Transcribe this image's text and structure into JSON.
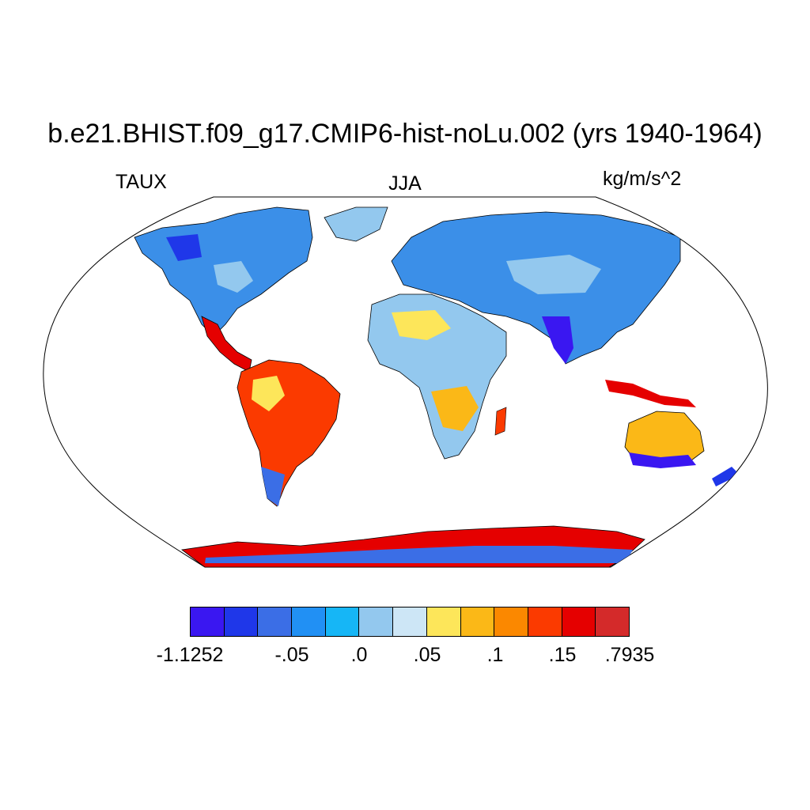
{
  "header": {
    "title": "b.e21.BHIST.f09_g17.CMIP6-hist-noLu.002 (yrs 1940-1964)",
    "left_label": "TAUX",
    "center_label": "JJA",
    "right_label": "kg/m/s^2"
  },
  "colorbar": {
    "colors": [
      "#3a17f1",
      "#1f37e9",
      "#3b6ee6",
      "#2190f4",
      "#16b6f6",
      "#93c8ee",
      "#cde6f6",
      "#fde65a",
      "#fbb817",
      "#fb8800",
      "#fb3a00",
      "#e50000",
      "#d42a2a"
    ],
    "tick_labels": [
      "-1.1252",
      "-.05",
      ".0",
      ".05",
      ".1",
      ".15",
      ".7935"
    ]
  },
  "chart_data": {
    "type": "heatmap",
    "title": "b.e21.BHIST.f09_g17.CMIP6-hist-noLu.002 (yrs 1940-1964)",
    "variable": "TAUX",
    "season": "JJA",
    "units": "kg/m/s^2",
    "projection": "Robinson",
    "colorbar_range": [
      -1.1252,
      0.7935
    ]
  }
}
